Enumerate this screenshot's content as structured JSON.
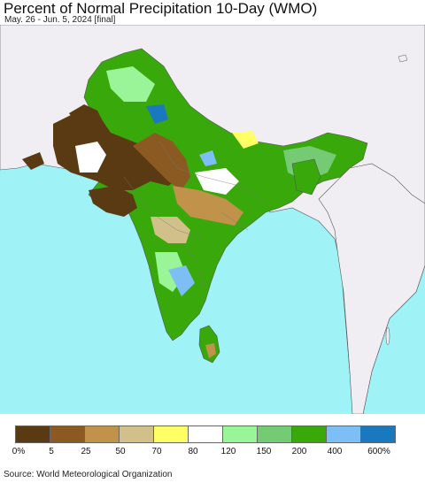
{
  "title": "Percent of Normal Precipitation 10-Day (WMO)",
  "subtitle": "May. 26 - Jun. 5, 2024 [final]",
  "source": "Source: World Meteorological Organization",
  "colors": {
    "ocean": "#9ff3f6",
    "land_outside": "#f0eef3",
    "border": "#555555"
  },
  "legend": {
    "colors": [
      "#5a3a12",
      "#8a5a22",
      "#c0924a",
      "#d2c08a",
      "#ffff66",
      "#ffffff",
      "#99f598",
      "#74cb74",
      "#38a80b",
      "#7dbff5",
      "#1a78bf"
    ],
    "labels": [
      "0%",
      "5",
      "25",
      "50",
      "70",
      "80",
      "120",
      "150",
      "200",
      "400",
      "600%"
    ]
  }
}
